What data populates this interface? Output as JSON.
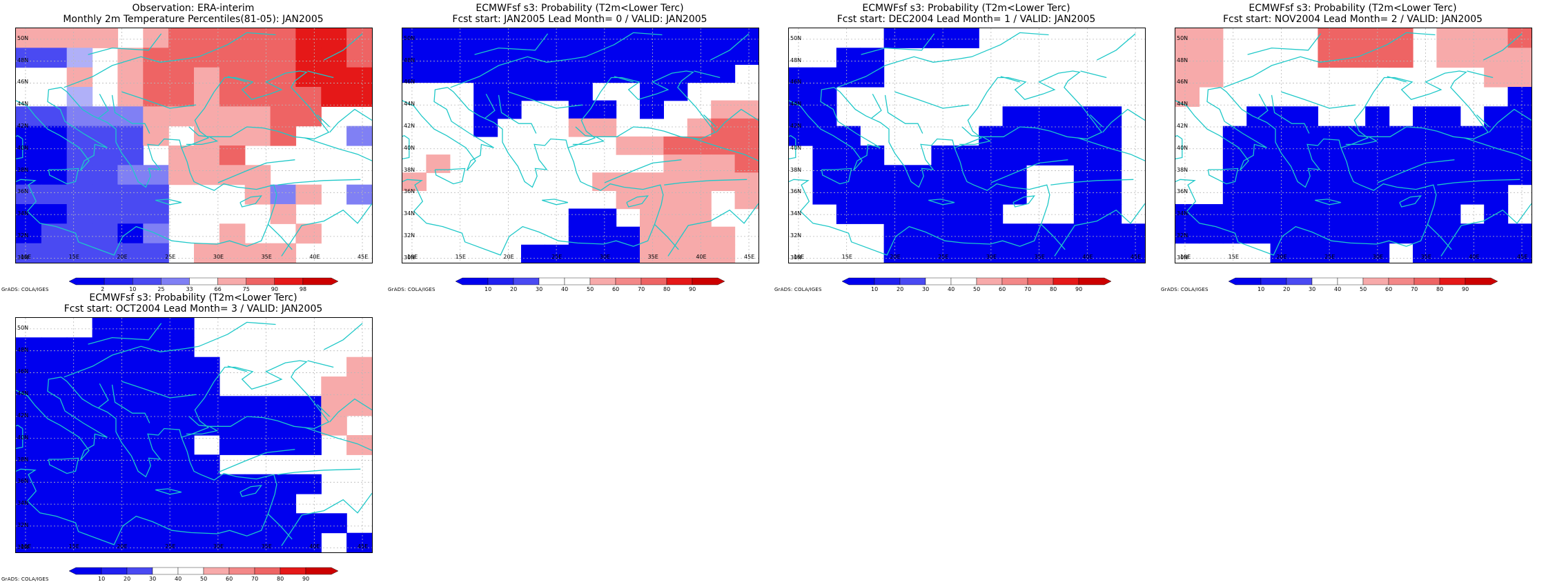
{
  "credit": "GrADS: COLA/IGES",
  "colors": {
    "coast": "#1ec8c8",
    "grid": "#b8b8b8",
    "blues": [
      "#0000ee",
      "#2020f0",
      "#4a4af2",
      "#8080f4",
      "#b0b0f8"
    ],
    "reds": [
      "#f7aaaa",
      "#f38888",
      "#ee6464",
      "#ea3c3c",
      "#e51818",
      "#cc0000"
    ]
  },
  "lat_labels": [
    "30N",
    "32N",
    "34N",
    "36N",
    "38N",
    "40N",
    "42N",
    "44N",
    "46N",
    "48N",
    "50N"
  ],
  "lon_labels": [
    "10E",
    "15E",
    "20E",
    "25E",
    "30E",
    "35E",
    "40E",
    "45E"
  ],
  "panels": [
    {
      "id": "obs",
      "title1": "Observation: ERA-interim",
      "title2": "Monthly 2m Temperature Percentiles(81-05): JAN2005",
      "colorbar_labels": [
        "2",
        "10",
        "25",
        "33",
        "66",
        "75",
        "90",
        "98"
      ],
      "colorbar_colors": [
        "#0000ee",
        "#2020f0",
        "#4a4af2",
        "#8080f4",
        "#ffffff",
        "#f7aaaa",
        "#ee6464",
        "#e51818",
        "#cc0000"
      ],
      "grid_rows_top_to_bottom": [
        "rrrr.rRRRRRZZR",
        "bbw.rRRRRRRZZR",
        "..r.rRRrRRRZZZ",
        "..w.rRRrRRRRZZ",
        "bblllrrrrrRR..",
        "BBbbbr.rrrR..l",
        "BBbbb.rrR.....",
        "BBbbllrrrr....",
        "bbbbbb...rlr.l",
        "BBbbbb....r...",
        "BbbbBl..r..r..",
        "bbbbbb.rrrr..."
      ]
    },
    {
      "id": "lead0",
      "title1": "ECMWFsf s3: Probability (T2m<Lower Terc)",
      "title2": "Fcst start: JAN2005  Lead Month= 0 / VALID: JAN2005",
      "colorbar_labels": [
        "10",
        "20",
        "30",
        "40",
        "50",
        "60",
        "70",
        "80",
        "90"
      ],
      "colorbar_colors": [
        "#0000ee",
        "#2020f0",
        "#4a4af2",
        "#ffffff",
        "#ffffff",
        "#f7aaaa",
        "#f38888",
        "#ee6464",
        "#e51818",
        "#cc0000"
      ],
      "grid_rows_top_to_bottom": [
        "BBBBBBBBBBBBBBB",
        "BBBBBBBBBBBBBBB",
        "BBBBBBBBBBBBBB.",
        "...BBBBB..BB...",
        "...BB..BB.B..rr",
        "...B...rr...rRR",
        ".........rrRRRR",
        ".r.........rrrR",
        "r.......rrrrrrr",
        ".........rrrr.r",
        ".......BB.rrr..",
        ".......BBBrrrr.",
        ".....BBBBBrrrr."
      ]
    },
    {
      "id": "lead1",
      "title1": "ECMWFsf s3: Probability (T2m<Lower Terc)",
      "title2": "Fcst start: DEC2004  Lead Month= 1 / VALID: JAN2005",
      "colorbar_labels": [
        "10",
        "20",
        "30",
        "40",
        "50",
        "60",
        "70",
        "80",
        "90"
      ],
      "colorbar_colors": [
        "#0000ee",
        "#2020f0",
        "#4a4af2",
        "#ffffff",
        "#ffffff",
        "#f7aaaa",
        "#f38888",
        "#ee6464",
        "#e51818",
        "#cc0000"
      ],
      "grid_rows_top_to_bottom": [
        "....BBBB.......",
        "..BB...........",
        "BBBB...........",
        "BB.............",
        "BB.......BBBBB.",
        "BBB.....BBBBBB.",
        ".BBB..BBBBBBBB.",
        ".BBBBBBBBB..BB.",
        ".BBBBBBBBB..BB.",
        "..BBBBBBB...BB.",
        "....BBBBBBBBBBB",
        "....BBBBBBBBBBB"
      ]
    },
    {
      "id": "lead2",
      "title1": "ECMWFsf s3: Probability (T2m<Lower Terc)",
      "title2": "Fcst start: NOV2004  Lead Month= 2 / VALID: JAN2005",
      "colorbar_labels": [
        "10",
        "20",
        "30",
        "40",
        "50",
        "60",
        "70",
        "80",
        "90"
      ],
      "colorbar_colors": [
        "#0000ee",
        "#2020f0",
        "#4a4af2",
        "#ffffff",
        "#ffffff",
        "#f7aaaa",
        "#f38888",
        "#ee6464",
        "#e51818",
        "#cc0000"
      ],
      "grid_rows_top_to_bottom": [
        "rr....RRRR.rrrR",
        "rr....RRRR.rrrr",
        "rr...........rr",
        "r.............B",
        "...BBB..B.BB.BB",
        "..BBBBBBBBBBBBB",
        "..BBBBBBBBBBBBB",
        "..BBBBBBBBBBBBB",
        "..BBBBBBBBBBBB.",
        "BBBBBBBBBBBB.B.",
        "BBBBBBBBBBBBBBB",
        "....BBBBB.BBBBB"
      ]
    },
    {
      "id": "lead3",
      "title1": "ECMWFsf s3: Probability (T2m<Lower Terc)",
      "title2": "Fcst start: OCT2004  Lead Month= 3 / VALID: JAN2005",
      "colorbar_labels": [
        "10",
        "20",
        "30",
        "40",
        "50",
        "60",
        "70",
        "80",
        "90"
      ],
      "colorbar_colors": [
        "#0000ee",
        "#2020f0",
        "#4a4af2",
        "#ffffff",
        "#ffffff",
        "#f7aaaa",
        "#f38888",
        "#ee6464",
        "#e51818",
        "#cc0000"
      ],
      "grid_rows_top_to_bottom": [
        "...BBBB.......",
        "BBBBBBB.......",
        "BBBBBBBB.....r",
        "BBBBBBBB....rr",
        "BBBBBBBBBBBBrr",
        "BBBBBBBBBBBBr.",
        "BBBBBBB.BBBB.r",
        "BBBBBBBB......",
        "BBBBBBBBBBBB..",
        "BBBBBBBBBBB...",
        "BBBBBBBBBBBBB.",
        "BBBBBBBBBBBB.B"
      ]
    }
  ]
}
